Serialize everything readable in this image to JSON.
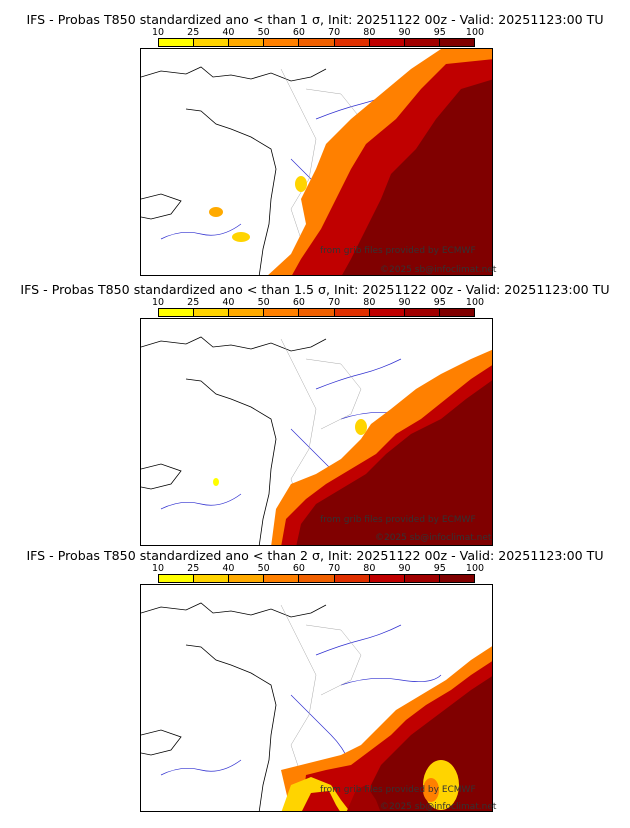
{
  "colorbar": {
    "ticks": [
      "10",
      "25",
      "40",
      "50",
      "60",
      "70",
      "80",
      "90",
      "95",
      "100"
    ],
    "colors": [
      "#ffff00",
      "#ffd400",
      "#ffaa00",
      "#ff8000",
      "#f06000",
      "#e03000",
      "#c00000",
      "#a00000",
      "#800000"
    ]
  },
  "panels": [
    {
      "title": "IFS - Probas T850  standardized ano < than 1 σ, Init: 20251122 00z - Valid: 20251123:00 TU",
      "credit_source": "from grib files provided by ECMWF",
      "credit_copyright": "©2025 sb@infoclimat.net"
    },
    {
      "title": "IFS - Probas T850  standardized ano < than 1.5 σ, Init: 20251122 00z - Valid: 20251123:00 TU",
      "credit_source": "from grib files provided by ECMWF",
      "credit_copyright": "©2025 sb@infoclimat.net"
    },
    {
      "title": "IFS - Probas T850  standardized ano < than 2 σ, Init: 20251122 00z - Valid: 20251123:00 TU",
      "credit_source": "from grib files provided by ECMWF",
      "credit_copyright": "©2025 sb@infoclimat.net"
    }
  ]
}
